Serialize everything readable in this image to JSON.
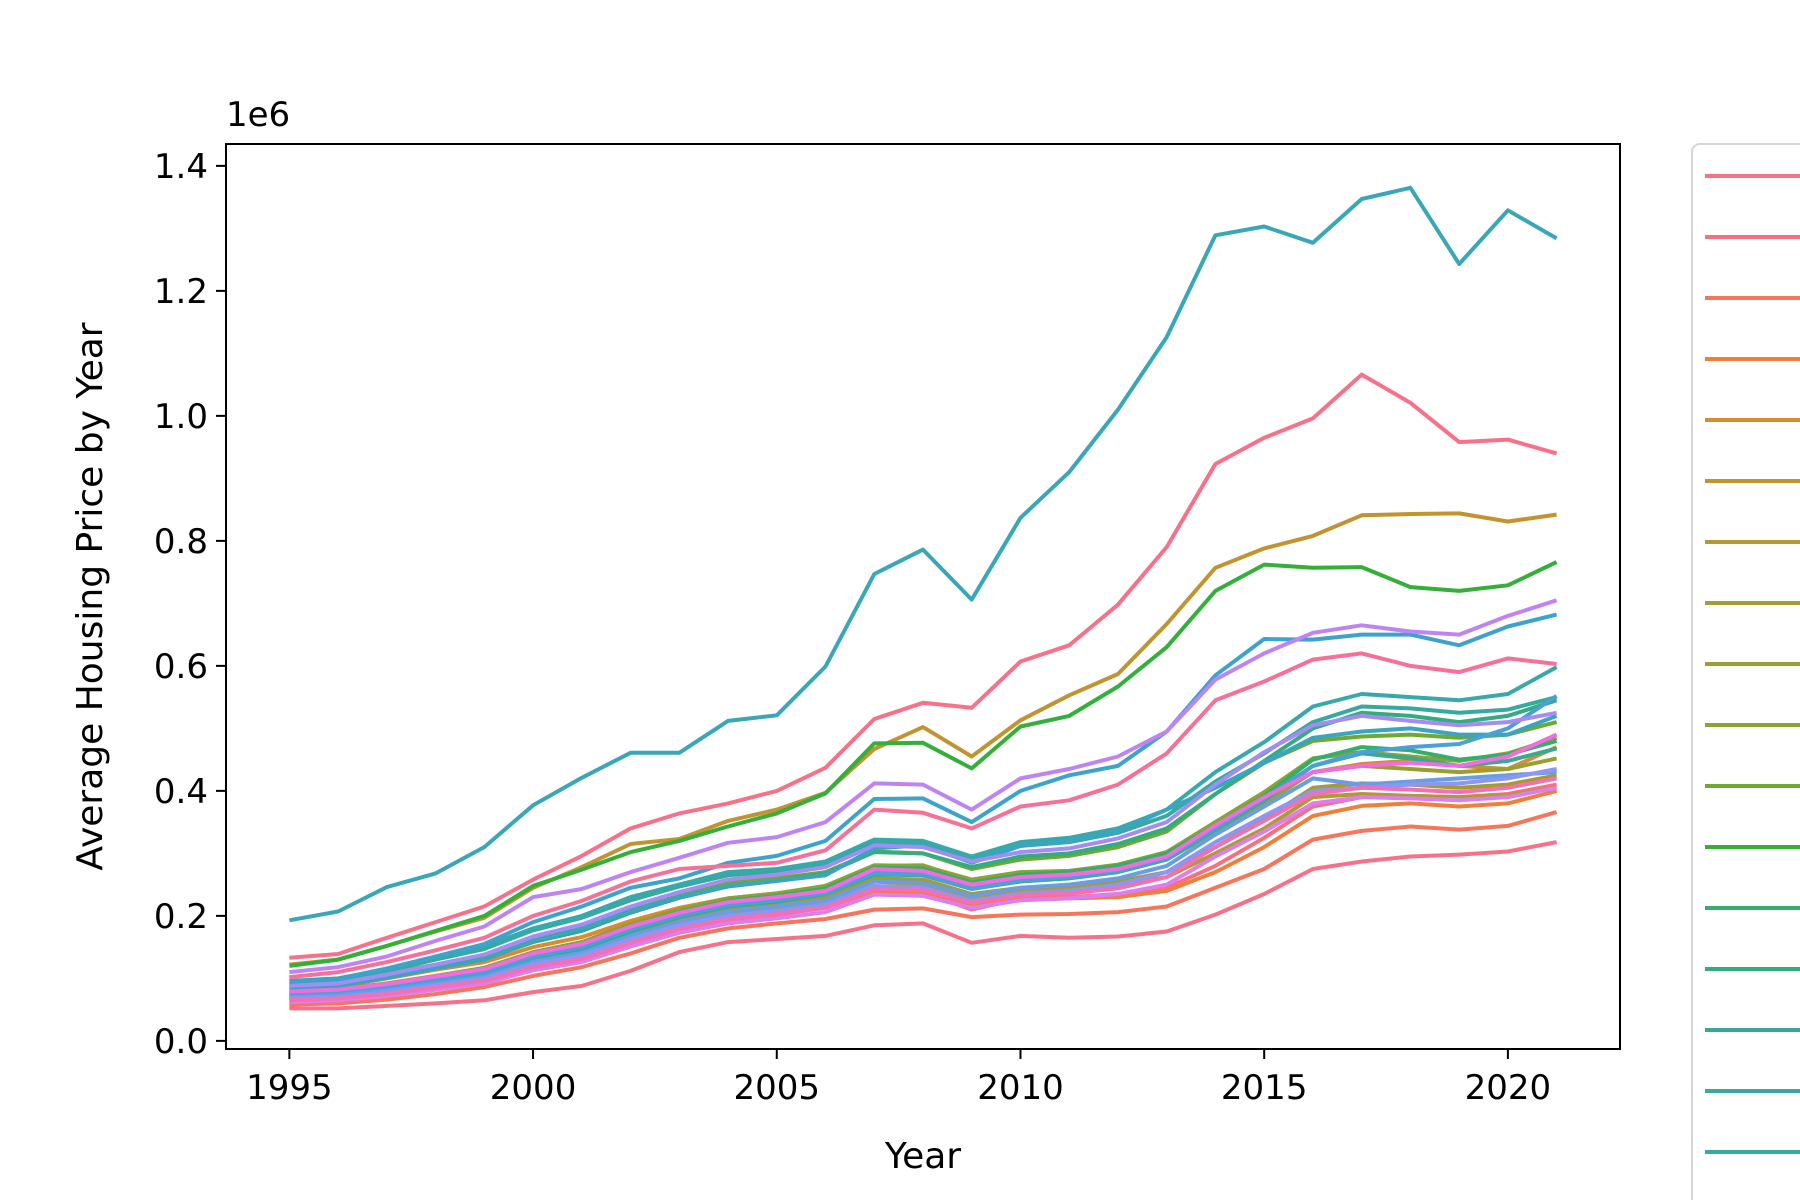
{
  "chart_data": {
    "type": "line",
    "title": "",
    "xlabel": "Year",
    "ylabel": "Average Housing Price by Year",
    "y_offset_text": "1e6",
    "xlim": [
      1993.7,
      2022.3
    ],
    "ylim": [
      -0.013,
      1.435
    ],
    "x_ticks": [
      1995,
      2000,
      2005,
      2010,
      2015,
      2020
    ],
    "x_tick_labels": [
      "1995",
      "2000",
      "2005",
      "2010",
      "2015",
      "2020"
    ],
    "y_ticks": [
      0.0,
      0.2,
      0.4,
      0.6,
      0.8,
      1.0,
      1.2,
      1.4
    ],
    "y_tick_labels": [
      "0.0",
      "0.2",
      "0.4",
      "0.6",
      "0.8",
      "1.0",
      "1.2",
      "1.4"
    ],
    "grid": false,
    "legend": {
      "placement": "right, outside plot area (cropped)",
      "visible_entries": 17
    },
    "x": [
      1995,
      1996,
      1997,
      1998,
      1999,
      2000,
      2001,
      2002,
      2003,
      2004,
      2005,
      2006,
      2007,
      2008,
      2009,
      2010,
      2011,
      2012,
      2013,
      2014,
      2015,
      2016,
      2017,
      2018,
      2019,
      2020,
      2021
    ],
    "series": [
      {
        "color": "#f77189",
        "values": [
          0.133,
          0.139,
          0.165,
          0.19,
          0.215,
          0.258,
          0.296,
          0.34,
          0.364,
          0.38,
          0.4,
          0.437,
          0.515,
          0.541,
          0.533,
          0.607,
          0.633,
          0.698,
          0.79,
          0.923,
          0.965,
          0.996,
          1.066,
          1.021,
          0.958,
          0.962,
          0.94
        ]
      },
      {
        "color": "#f7717d",
        "values": [
          0.063,
          0.066,
          0.073,
          0.082,
          0.093,
          0.115,
          0.128,
          0.152,
          0.176,
          0.192,
          0.202,
          0.213,
          0.24,
          0.238,
          0.21,
          0.228,
          0.23,
          0.235,
          0.245,
          0.28,
          0.325,
          0.375,
          0.39,
          0.392,
          0.39,
          0.395,
          0.41
        ]
      },
      {
        "color": "#f6765c",
        "values": [
          0.058,
          0.06,
          0.066,
          0.075,
          0.086,
          0.104,
          0.118,
          0.14,
          0.165,
          0.18,
          0.188,
          0.195,
          0.21,
          0.212,
          0.198,
          0.202,
          0.203,
          0.206,
          0.215,
          0.245,
          0.275,
          0.322,
          0.336,
          0.343,
          0.338,
          0.344,
          0.366
        ]
      },
      {
        "color": "#f17f3a",
        "values": [
          0.066,
          0.07,
          0.076,
          0.086,
          0.096,
          0.118,
          0.132,
          0.158,
          0.18,
          0.197,
          0.207,
          0.218,
          0.238,
          0.236,
          0.216,
          0.226,
          0.228,
          0.23,
          0.24,
          0.27,
          0.31,
          0.36,
          0.376,
          0.38,
          0.375,
          0.38,
          0.4
        ]
      },
      {
        "color": "#d98b32",
        "values": [
          0.085,
          0.087,
          0.1,
          0.114,
          0.126,
          0.15,
          0.166,
          0.192,
          0.213,
          0.228,
          0.236,
          0.247,
          0.28,
          0.281,
          0.255,
          0.265,
          0.27,
          0.276,
          0.3,
          0.35,
          0.39,
          0.43,
          0.443,
          0.448,
          0.44,
          0.435,
          0.47
        ]
      },
      {
        "color": "#c29430",
        "values": [
          0.122,
          0.13,
          0.152,
          0.175,
          0.197,
          0.245,
          0.278,
          0.315,
          0.323,
          0.352,
          0.37,
          0.397,
          0.467,
          0.502,
          0.455,
          0.513,
          0.553,
          0.587,
          0.667,
          0.757,
          0.788,
          0.808,
          0.841,
          0.843,
          0.844,
          0.831,
          0.842
        ]
      },
      {
        "color": "#b39931",
        "values": [
          0.07,
          0.072,
          0.08,
          0.09,
          0.1,
          0.124,
          0.138,
          0.163,
          0.187,
          0.203,
          0.212,
          0.223,
          0.255,
          0.25,
          0.228,
          0.24,
          0.245,
          0.25,
          0.262,
          0.3,
          0.34,
          0.39,
          0.395,
          0.392,
          0.39,
          0.393,
          0.405
        ]
      },
      {
        "color": "#a59c31",
        "values": [
          0.074,
          0.076,
          0.083,
          0.094,
          0.104,
          0.13,
          0.145,
          0.172,
          0.196,
          0.212,
          0.22,
          0.23,
          0.26,
          0.258,
          0.235,
          0.245,
          0.248,
          0.255,
          0.27,
          0.31,
          0.355,
          0.405,
          0.412,
          0.41,
          0.405,
          0.41,
          0.425
        ]
      },
      {
        "color": "#99a031",
        "values": [
          0.076,
          0.079,
          0.087,
          0.099,
          0.111,
          0.137,
          0.152,
          0.18,
          0.203,
          0.22,
          0.228,
          0.24,
          0.272,
          0.27,
          0.248,
          0.262,
          0.265,
          0.273,
          0.29,
          0.335,
          0.38,
          0.43,
          0.44,
          0.435,
          0.43,
          0.435,
          0.452
        ]
      },
      {
        "color": "#88a431",
        "values": [
          0.08,
          0.083,
          0.092,
          0.104,
          0.117,
          0.142,
          0.158,
          0.187,
          0.21,
          0.228,
          0.236,
          0.248,
          0.281,
          0.28,
          0.258,
          0.27,
          0.272,
          0.282,
          0.302,
          0.35,
          0.398,
          0.452,
          0.462,
          0.455,
          0.448,
          0.46,
          0.485
        ]
      },
      {
        "color": "#6eaa31",
        "values": [
          0.09,
          0.094,
          0.108,
          0.122,
          0.136,
          0.165,
          0.183,
          0.21,
          0.232,
          0.252,
          0.26,
          0.27,
          0.303,
          0.3,
          0.275,
          0.29,
          0.296,
          0.31,
          0.335,
          0.395,
          0.445,
          0.48,
          0.487,
          0.49,
          0.485,
          0.49,
          0.51
        ]
      },
      {
        "color": "#33b039",
        "values": [
          0.12,
          0.13,
          0.152,
          0.176,
          0.2,
          0.248,
          0.274,
          0.302,
          0.32,
          0.343,
          0.364,
          0.396,
          0.476,
          0.477,
          0.436,
          0.503,
          0.52,
          0.567,
          0.63,
          0.72,
          0.762,
          0.757,
          0.758,
          0.726,
          0.72,
          0.729,
          0.766
        ]
      },
      {
        "color": "#34ae6a",
        "values": [
          0.078,
          0.081,
          0.09,
          0.102,
          0.114,
          0.14,
          0.155,
          0.183,
          0.206,
          0.224,
          0.232,
          0.244,
          0.277,
          0.276,
          0.253,
          0.266,
          0.27,
          0.28,
          0.3,
          0.345,
          0.392,
          0.45,
          0.47,
          0.465,
          0.45,
          0.458,
          0.48
        ]
      },
      {
        "color": "#35ac80",
        "values": [
          0.087,
          0.091,
          0.103,
          0.118,
          0.131,
          0.158,
          0.176,
          0.205,
          0.229,
          0.247,
          0.256,
          0.268,
          0.302,
          0.3,
          0.278,
          0.295,
          0.3,
          0.315,
          0.34,
          0.395,
          0.448,
          0.5,
          0.525,
          0.52,
          0.51,
          0.52,
          0.545
        ]
      },
      {
        "color": "#36ab91",
        "values": [
          0.073,
          0.075,
          0.084,
          0.096,
          0.107,
          0.132,
          0.147,
          0.175,
          0.198,
          0.215,
          0.223,
          0.235,
          0.266,
          0.265,
          0.243,
          0.255,
          0.26,
          0.27,
          0.29,
          0.338,
          0.385,
          0.44,
          0.46,
          0.452,
          0.44,
          0.448,
          0.468
        ]
      },
      {
        "color": "#37aa9f",
        "values": [
          0.093,
          0.097,
          0.112,
          0.13,
          0.147,
          0.177,
          0.197,
          0.225,
          0.247,
          0.265,
          0.271,
          0.282,
          0.317,
          0.315,
          0.29,
          0.312,
          0.318,
          0.333,
          0.36,
          0.415,
          0.46,
          0.51,
          0.535,
          0.532,
          0.525,
          0.53,
          0.55
        ]
      },
      {
        "color": "#38a9ab",
        "values": [
          0.096,
          0.1,
          0.115,
          0.134,
          0.151,
          0.18,
          0.2,
          0.23,
          0.25,
          0.27,
          0.275,
          0.287,
          0.322,
          0.32,
          0.295,
          0.318,
          0.325,
          0.34,
          0.37,
          0.43,
          0.478,
          0.535,
          0.555,
          0.55,
          0.545,
          0.555,
          0.598
        ]
      },
      {
        "color": "#39a7b7",
        "values": [
          0.193,
          0.207,
          0.246,
          0.268,
          0.31,
          0.377,
          0.421,
          0.461,
          0.461,
          0.512,
          0.521,
          0.599,
          0.747,
          0.786,
          0.706,
          0.837,
          0.91,
          1.01,
          1.126,
          1.289,
          1.303,
          1.277,
          1.347,
          1.365,
          1.243,
          1.329,
          1.284
        ]
      },
      {
        "color": "#3aa5c1",
        "values": [
          0.085,
          0.088,
          0.101,
          0.116,
          0.13,
          0.16,
          0.18,
          0.208,
          0.23,
          0.248,
          0.256,
          0.265,
          0.308,
          0.313,
          0.285,
          0.312,
          0.32,
          0.335,
          0.37,
          0.405,
          0.445,
          0.485,
          0.495,
          0.5,
          0.49,
          0.49,
          0.52
        ]
      },
      {
        "color": "#3ca3cc",
        "values": [
          0.095,
          0.099,
          0.116,
          0.135,
          0.155,
          0.19,
          0.215,
          0.245,
          0.26,
          0.285,
          0.296,
          0.32,
          0.387,
          0.388,
          0.35,
          0.4,
          0.425,
          0.44,
          0.495,
          0.585,
          0.643,
          0.642,
          0.65,
          0.65,
          0.633,
          0.663,
          0.682
        ]
      },
      {
        "color": "#4aa0d9",
        "values": [
          0.075,
          0.078,
          0.087,
          0.099,
          0.11,
          0.135,
          0.15,
          0.178,
          0.2,
          0.217,
          0.225,
          0.236,
          0.268,
          0.266,
          0.243,
          0.257,
          0.262,
          0.272,
          0.292,
          0.34,
          0.388,
          0.44,
          0.462,
          0.47,
          0.475,
          0.5,
          0.552
        ]
      },
      {
        "color": "#6b9ce6",
        "values": [
          0.07,
          0.073,
          0.081,
          0.092,
          0.103,
          0.127,
          0.141,
          0.168,
          0.19,
          0.207,
          0.215,
          0.225,
          0.255,
          0.253,
          0.232,
          0.245,
          0.25,
          0.26,
          0.28,
          0.33,
          0.375,
          0.42,
          0.41,
          0.415,
          0.42,
          0.425,
          0.43
        ]
      },
      {
        "color": "#8e96f3",
        "values": [
          0.068,
          0.07,
          0.078,
          0.089,
          0.1,
          0.123,
          0.137,
          0.163,
          0.185,
          0.2,
          0.208,
          0.218,
          0.248,
          0.245,
          0.224,
          0.236,
          0.24,
          0.25,
          0.27,
          0.318,
          0.36,
          0.4,
          0.405,
          0.41,
          0.412,
          0.42,
          0.435
        ]
      },
      {
        "color": "#a48cf4",
        "values": [
          0.088,
          0.092,
          0.106,
          0.122,
          0.138,
          0.167,
          0.186,
          0.215,
          0.238,
          0.258,
          0.266,
          0.278,
          0.313,
          0.31,
          0.287,
          0.302,
          0.308,
          0.324,
          0.35,
          0.41,
          0.462,
          0.505,
          0.52,
          0.512,
          0.505,
          0.51,
          0.525
        ]
      },
      {
        "color": "#bf84f4",
        "values": [
          0.11,
          0.118,
          0.135,
          0.16,
          0.183,
          0.23,
          0.243,
          0.27,
          0.293,
          0.317,
          0.326,
          0.35,
          0.412,
          0.41,
          0.37,
          0.42,
          0.435,
          0.455,
          0.495,
          0.578,
          0.62,
          0.653,
          0.665,
          0.655,
          0.65,
          0.68,
          0.705
        ]
      },
      {
        "color": "#dc7ef2",
        "values": [
          0.062,
          0.065,
          0.072,
          0.082,
          0.092,
          0.113,
          0.126,
          0.151,
          0.173,
          0.188,
          0.196,
          0.206,
          0.234,
          0.232,
          0.213,
          0.225,
          0.228,
          0.235,
          0.25,
          0.295,
          0.335,
          0.38,
          0.39,
          0.388,
          0.385,
          0.39,
          0.405
        ]
      },
      {
        "color": "#f26be0",
        "values": [
          0.079,
          0.082,
          0.091,
          0.103,
          0.115,
          0.14,
          0.155,
          0.183,
          0.205,
          0.222,
          0.23,
          0.24,
          0.275,
          0.272,
          0.25,
          0.262,
          0.266,
          0.275,
          0.295,
          0.345,
          0.39,
          0.43,
          0.44,
          0.445,
          0.44,
          0.455,
          0.49
        ]
      },
      {
        "color": "#f56fb5",
        "values": [
          0.065,
          0.068,
          0.075,
          0.086,
          0.096,
          0.118,
          0.131,
          0.157,
          0.179,
          0.195,
          0.203,
          0.213,
          0.243,
          0.241,
          0.221,
          0.233,
          0.236,
          0.244,
          0.262,
          0.31,
          0.352,
          0.395,
          0.405,
          0.402,
          0.398,
          0.405,
          0.42
        ]
      },
      {
        "color": "#f67098",
        "values": [
          0.102,
          0.11,
          0.126,
          0.145,
          0.165,
          0.2,
          0.224,
          0.255,
          0.275,
          0.28,
          0.285,
          0.305,
          0.37,
          0.365,
          0.34,
          0.375,
          0.385,
          0.41,
          0.46,
          0.545,
          0.575,
          0.61,
          0.62,
          0.6,
          0.59,
          0.612,
          0.603
        ]
      },
      {
        "color": "#f7718a",
        "values": [
          0.052,
          0.052,
          0.056,
          0.06,
          0.065,
          0.078,
          0.088,
          0.112,
          0.142,
          0.158,
          0.163,
          0.168,
          0.185,
          0.188,
          0.157,
          0.168,
          0.165,
          0.167,
          0.175,
          0.202,
          0.235,
          0.275,
          0.287,
          0.295,
          0.298,
          0.303,
          0.318
        ]
      }
    ]
  }
}
